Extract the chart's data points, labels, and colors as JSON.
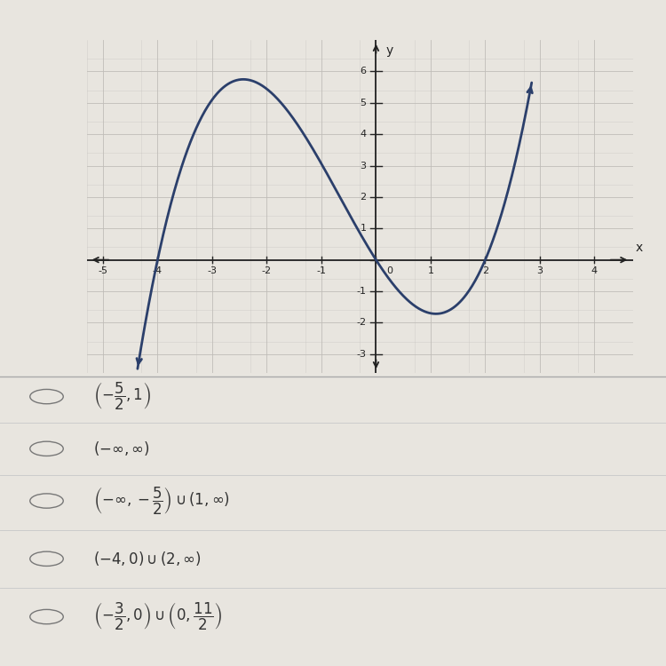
{
  "xlim": [
    -5.3,
    4.7
  ],
  "ylim": [
    -3.6,
    7.0
  ],
  "xticks": [
    -5,
    -4,
    -3,
    -2,
    -1,
    0,
    1,
    2,
    3,
    4
  ],
  "yticks": [
    -3,
    -2,
    -1,
    1,
    2,
    3,
    4,
    5,
    6
  ],
  "xlabel": "x",
  "ylabel": "y",
  "curve_color": "#2b3f6b",
  "curve_linewidth": 2.0,
  "plot_bg": "#e8e5df",
  "grid_color": "#c0bdb8",
  "axis_color": "#222222",
  "page_bg": "#e8e5df",
  "options_bg": "#e8e5df",
  "k": 0.26,
  "curve_xmin": -5.0,
  "curve_xmax": 2.8,
  "options": [
    "$\\left(-\\dfrac{5}{2},1\\right)$",
    "$(-\\infty,\\infty)$",
    "$\\left(-\\infty,-\\dfrac{5}{2}\\right)\\cup\\left(1,\\infty\\right)$",
    "$(-4,0)\\cup(2,\\infty)$",
    "$\\left(-\\dfrac{3}{2},0\\right)\\cup\\left(0,\\dfrac{11}{2}\\right)$"
  ]
}
